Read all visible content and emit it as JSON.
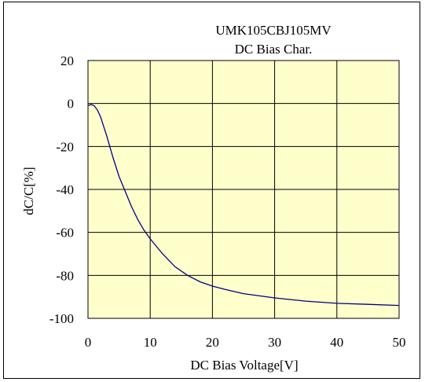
{
  "chart_data": {
    "type": "line",
    "title": "UMK105CBJ105MV",
    "subtitle": "DC Bias Char.",
    "xlabel": "DC Bias Voltage[V]",
    "ylabel": "dC/C[%]",
    "xlim": [
      0,
      50
    ],
    "ylim": [
      -100,
      20
    ],
    "xticks": [
      0,
      10,
      20,
      30,
      40,
      50
    ],
    "yticks": [
      20,
      0,
      -20,
      -40,
      -60,
      -80,
      -100
    ],
    "grid": true,
    "legend": "none",
    "colors": {
      "plot_bg": "#FFFFCC",
      "line": "#000080",
      "grid": "#000000"
    },
    "series": [
      {
        "x": [
          0,
          0.5,
          1,
          1.5,
          2,
          3,
          4,
          5,
          6,
          7,
          8,
          9,
          10,
          12,
          14,
          16,
          18,
          20,
          22,
          25,
          30,
          35,
          40,
          45,
          50
        ],
        "values": [
          -1,
          -0.5,
          -1,
          -3,
          -6,
          -15,
          -25,
          -34,
          -41,
          -48,
          -54,
          -59,
          -63,
          -70,
          -76,
          -80,
          -83,
          -85,
          -86.5,
          -88.5,
          -90.5,
          -92,
          -93,
          -93.5,
          -94
        ]
      }
    ]
  }
}
